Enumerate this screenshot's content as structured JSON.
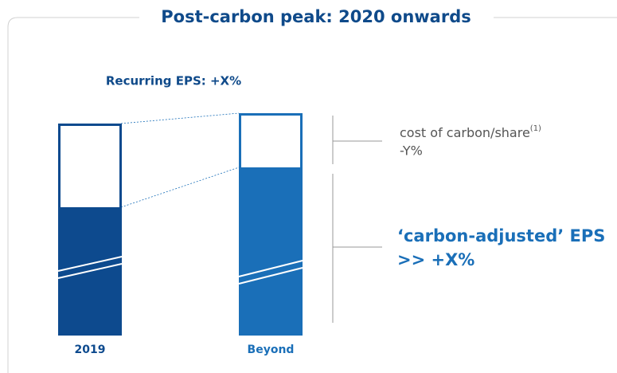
{
  "header": {
    "title": "Post-carbon peak: 2020 onwards"
  },
  "subtitle": "Recurring EPS: +X%",
  "bars": [
    {
      "label": "2019"
    },
    {
      "label": "Beyond"
    }
  ],
  "annotations": {
    "cost": {
      "text": "cost of carbon/share",
      "note": "(1)",
      "change": "-Y%"
    },
    "adjusted": {
      "text": "‘carbon-adjusted’ EPS",
      "change": ">> +X%"
    }
  }
}
